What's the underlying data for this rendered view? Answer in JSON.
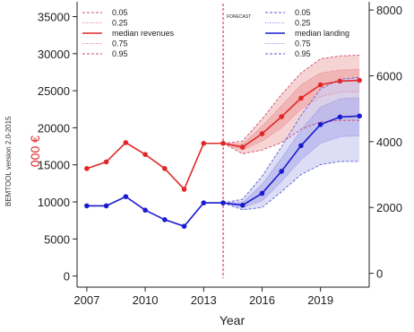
{
  "chart_data": {
    "type": "line",
    "xlabel": "Year",
    "ylabel_left": ",000 €",
    "ylabel_left_color": "#e02020",
    "side_note": "BEMTOOL version 2.0-2015",
    "forecast_label": "FORECAST",
    "forecast_start": 2014,
    "xlim": [
      2006.5,
      2021.5
    ],
    "ylim_left": [
      -1500,
      37000
    ],
    "ylim_right": [
      -420,
      8250
    ],
    "x_ticks": [
      2007,
      2010,
      2013,
      2016,
      2019
    ],
    "y_ticks_left": [
      0,
      5000,
      10000,
      15000,
      20000,
      25000,
      30000,
      35000
    ],
    "y_ticks_right": [
      0,
      2000,
      4000,
      6000,
      8000
    ],
    "colors": {
      "revenues": "#e02828",
      "revenues_band": "#f4c2c2",
      "revenues_band_inner": "#ec9a9a",
      "landing": "#1a1ad0",
      "landing_band": "#cfcff2",
      "landing_band_inner": "#a9a9ea",
      "forecast_line": "#c81e3c"
    },
    "legend_left": [
      {
        "label": "0.05",
        "style": "dashed",
        "color": "#d04a6a"
      },
      {
        "label": "0.25",
        "style": "dotted",
        "color": "#e07a8a"
      },
      {
        "label": "median revenues",
        "style": "solid",
        "color": "#e02828"
      },
      {
        "label": "0.75",
        "style": "dotted",
        "color": "#e07a8a"
      },
      {
        "label": "0.95",
        "style": "dashed",
        "color": "#d04a6a"
      }
    ],
    "legend_right": [
      {
        "label": "0.05",
        "style": "dashed",
        "color": "#5a5ad8"
      },
      {
        "label": "0.25",
        "style": "dotted",
        "color": "#8080e0"
      },
      {
        "label": "median landing",
        "style": "solid",
        "color": "#1a1ad0"
      },
      {
        "label": "0.75",
        "style": "dotted",
        "color": "#8080e0"
      },
      {
        "label": "0.95",
        "style": "dashed",
        "color": "#5a5ad8"
      }
    ],
    "series": [
      {
        "name": "median revenues",
        "axis": "left",
        "x": [
          2007,
          2008,
          2009,
          2010,
          2011,
          2012,
          2013,
          2014,
          2015,
          2016,
          2017,
          2018,
          2019,
          2020,
          2021
        ],
        "y": [
          14500,
          15400,
          18000,
          16400,
          14500,
          11700,
          17900,
          17900,
          17400,
          19200,
          21500,
          24000,
          25800,
          26300,
          26400
        ],
        "q05": [
          null,
          null,
          null,
          null,
          null,
          null,
          null,
          17900,
          16500,
          17000,
          18000,
          19800,
          20800,
          21000,
          21000
        ],
        "q25": [
          null,
          null,
          null,
          null,
          null,
          null,
          null,
          17900,
          17000,
          18200,
          20000,
          22500,
          24200,
          24800,
          24900
        ],
        "q75": [
          null,
          null,
          null,
          null,
          null,
          null,
          null,
          17900,
          17800,
          20200,
          23000,
          25800,
          27400,
          27800,
          27900
        ],
        "q95": [
          null,
          null,
          null,
          null,
          null,
          null,
          null,
          17900,
          18200,
          21200,
          24500,
          27400,
          29300,
          29700,
          29800
        ]
      },
      {
        "name": "median landing",
        "axis": "right",
        "x": [
          2007,
          2008,
          2009,
          2010,
          2011,
          2012,
          2013,
          2014,
          2015,
          2016,
          2017,
          2018,
          2019,
          2020,
          2021
        ],
        "y": [
          2050,
          2050,
          2330,
          1920,
          1630,
          1430,
          2140,
          2140,
          2070,
          2430,
          3100,
          3880,
          4520,
          4750,
          4780
        ],
        "q05": [
          null,
          null,
          null,
          null,
          null,
          null,
          null,
          2140,
          1930,
          2000,
          2480,
          3000,
          3300,
          3400,
          3400
        ],
        "q25": [
          null,
          null,
          null,
          null,
          null,
          null,
          null,
          2140,
          2000,
          2200,
          2800,
          3450,
          3950,
          4150,
          4180
        ],
        "q75": [
          null,
          null,
          null,
          null,
          null,
          null,
          null,
          2140,
          2150,
          2700,
          3500,
          4350,
          5050,
          5300,
          5340
        ],
        "q95": [
          null,
          null,
          null,
          null,
          null,
          null,
          null,
          2140,
          2250,
          2950,
          3850,
          4800,
          5600,
          5900,
          5950
        ]
      }
    ]
  }
}
